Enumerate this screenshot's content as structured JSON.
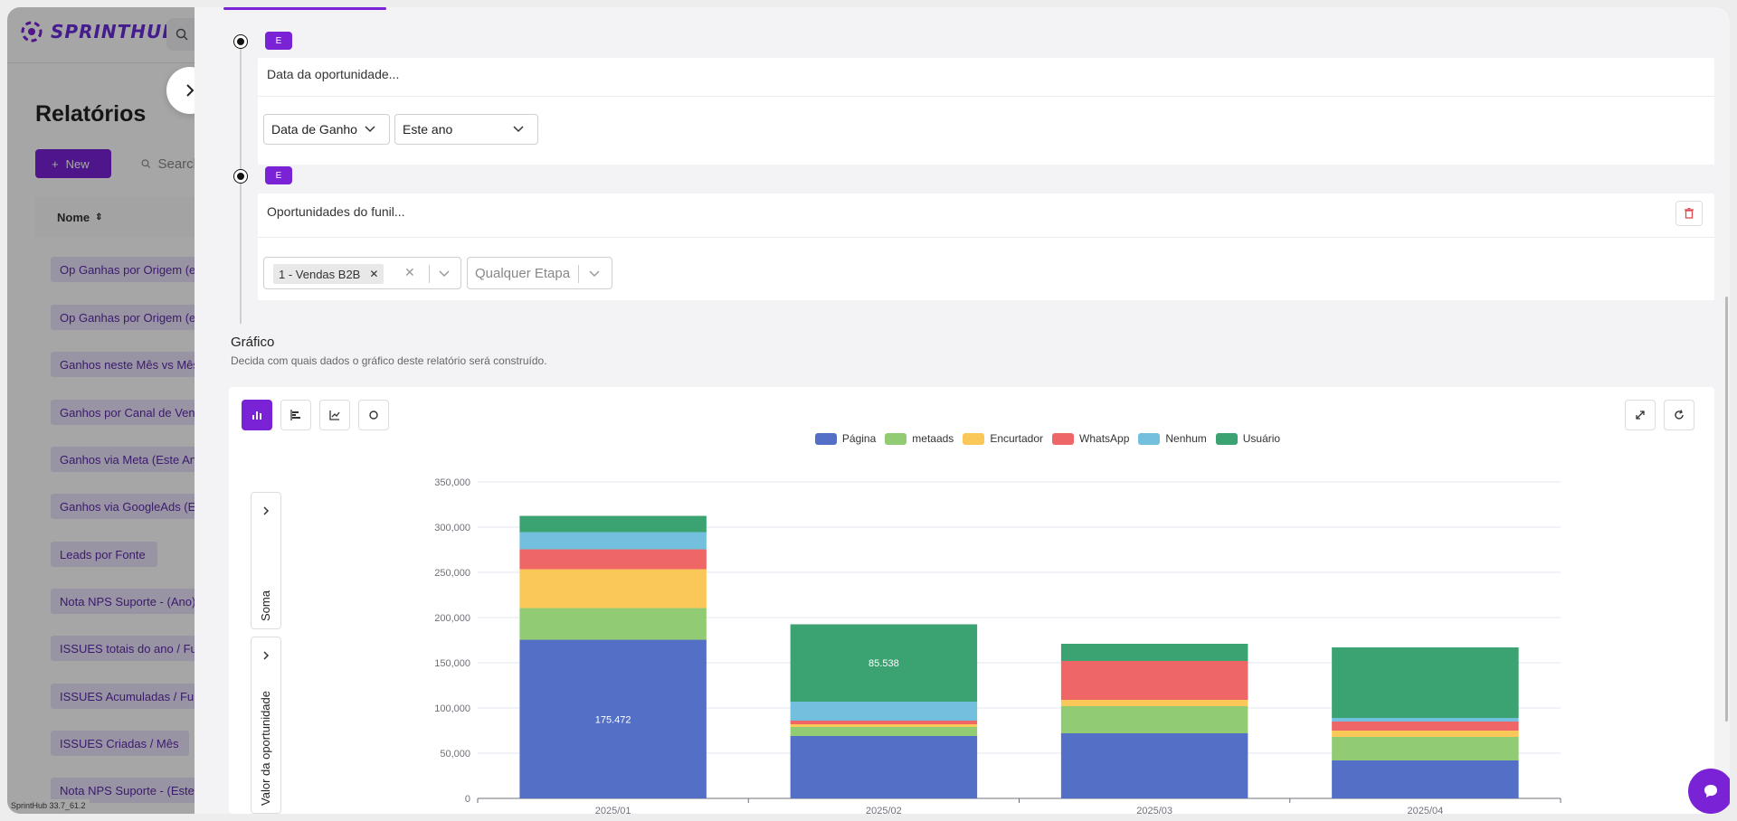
{
  "app": {
    "name": "SPRINTHUB",
    "version": "SprintHub 33.7_61.2"
  },
  "sidebar_page": {
    "title": "Relatórios",
    "new_label": "New",
    "search_placeholder": "Search",
    "column_header": "Nome",
    "reports": [
      "Op Ganhas por Origem (este ano)",
      "Op Ganhas por Origem (este mês)",
      "Ganhos neste Mês vs Mês anterior",
      "Ganhos por Canal de Vendas",
      "Ganhos via Meta (Este Ano)",
      "Ganhos via GoogleAds (Este Ano)",
      "Leads por Fonte",
      "Nota NPS Suporte - (Ano)",
      "ISSUES totais do ano / Funil",
      "ISSUES Acumuladas / Funil",
      "ISSUES Criadas / Mês",
      "Nota NPS Suporte - (Este Mês)"
    ]
  },
  "conditions": [
    {
      "badge": "E",
      "field_label": "Data da oportunidade...",
      "selects": [
        "Data de Ganho",
        "Este ano"
      ]
    },
    {
      "badge": "E",
      "field_label": "Oportunidades do funil...",
      "chip": "1 - Vendas B2B",
      "stage_placeholder": "Qualquer Etapa"
    }
  ],
  "chart_section": {
    "title": "Gráfico",
    "subtitle": "Decida com quais dados o gráfico deste relatório será construído.",
    "tools": [
      "bar-chart-icon",
      "horizontal-bar-icon",
      "line-chart-icon",
      "refresh-icon"
    ],
    "y_axis_tab": "Soma",
    "metric_tab": "Valor da oportunidade"
  },
  "chart_data": {
    "type": "bar",
    "stacked": true,
    "categories": [
      "2025/01",
      "2025/02",
      "2025/03",
      "2025/04"
    ],
    "ylim": [
      0,
      350000
    ],
    "yticks": [
      "0",
      "50,000",
      "100,000",
      "150,000",
      "200,000",
      "250,000",
      "300,000",
      "350,000"
    ],
    "series": [
      {
        "name": "Página",
        "color": "#5470c6",
        "values": [
          175472,
          69000,
          72000,
          42000
        ]
      },
      {
        "name": "metaads",
        "color": "#91cc75",
        "values": [
          35000,
          10000,
          30000,
          26000
        ]
      },
      {
        "name": "Encurtador",
        "color": "#fac858",
        "values": [
          43000,
          3000,
          7000,
          7000
        ]
      },
      {
        "name": "WhatsApp",
        "color": "#ee6666",
        "values": [
          22000,
          4000,
          43000,
          10000
        ]
      },
      {
        "name": "Nenhum",
        "color": "#73c0de",
        "values": [
          19000,
          21000,
          0,
          4000
        ]
      },
      {
        "name": "Usuário",
        "color": "#3ba272",
        "values": [
          18000,
          85538,
          19000,
          78000
        ]
      }
    ],
    "data_labels": [
      {
        "category": "2025/01",
        "series": "Página",
        "text": "175.472"
      },
      {
        "category": "2025/02",
        "series": "Usuário",
        "text": "85.538"
      }
    ],
    "grid": true,
    "legend_position": "top"
  }
}
